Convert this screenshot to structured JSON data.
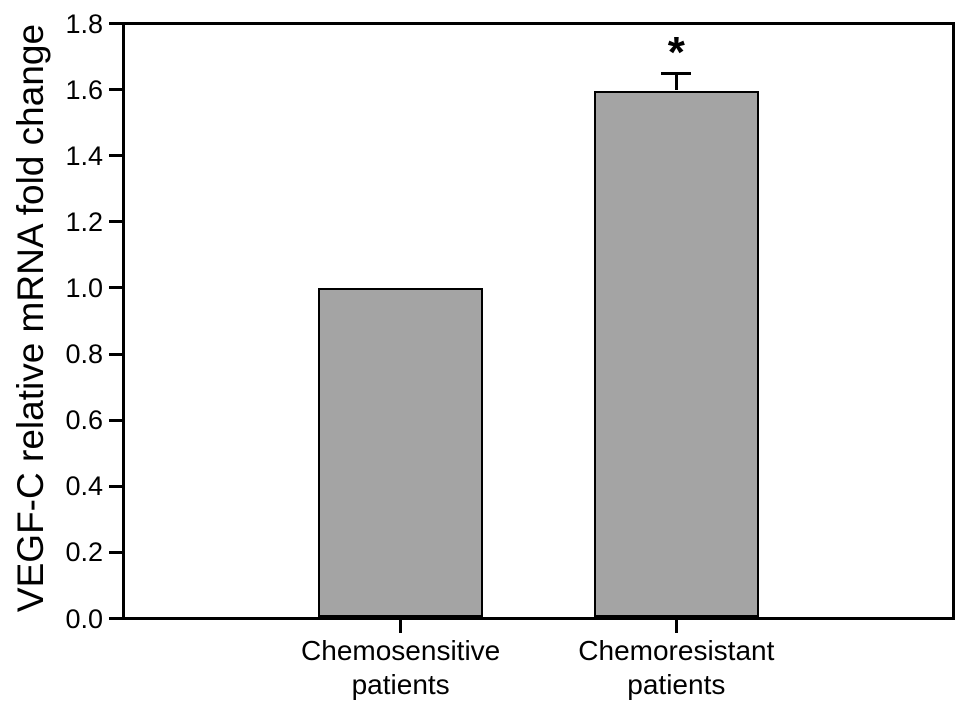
{
  "chart_data": {
    "type": "bar",
    "title": "",
    "xlabel": "",
    "ylabel": "VEGF-C relative mRNA fold change",
    "categories": [
      [
        "Chemosensitive",
        "patients"
      ],
      [
        "Chemoresistant",
        "patients"
      ]
    ],
    "values": [
      1.0,
      1.6
    ],
    "errors_plus": [
      0,
      0.05
    ],
    "significance": [
      {
        "index": 1,
        "symbol": "*"
      }
    ],
    "ylim": [
      0,
      1.8
    ],
    "yticks": [
      0.0,
      0.2,
      0.4,
      0.6,
      0.8,
      1.0,
      1.2,
      1.4,
      1.6,
      1.8
    ],
    "ytick_labels": [
      "0.0",
      "0.2",
      "0.4",
      "0.6",
      "0.8",
      "1.0",
      "1.2",
      "1.4",
      "1.6",
      "1.8"
    ],
    "grid": false,
    "legend": null,
    "colors": {
      "bar_fill": "#a4a4a4",
      "bar_border": "#000000",
      "axis": "#000000",
      "text": "#000000",
      "background": "#ffffff"
    }
  }
}
